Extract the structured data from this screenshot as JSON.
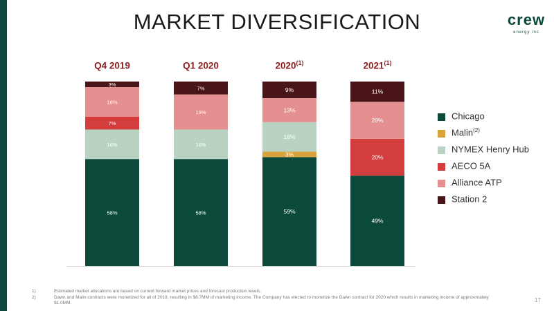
{
  "page": {
    "title": "MARKET DIVERSIFICATION",
    "page_number": "17",
    "logo_text": "crew",
    "logo_sub": "energy inc"
  },
  "columns": [
    {
      "label": "Q4 2019",
      "sup": ""
    },
    {
      "label": "Q1 2020",
      "sup": ""
    },
    {
      "label": "2020",
      "sup": "(1)"
    },
    {
      "label": "2021",
      "sup": "(1)"
    }
  ],
  "legend": [
    {
      "label": "Chicago",
      "sup": "",
      "color": "#0b4a3a"
    },
    {
      "label": "Malin",
      "sup": "(2)",
      "color": "#d9a23a"
    },
    {
      "label": "NYMEX Henry Hub",
      "sup": "",
      "color": "#b9d3c3"
    },
    {
      "label": "AECO 5A",
      "sup": "",
      "color": "#d43d3d"
    },
    {
      "label": "Alliance ATP",
      "sup": "",
      "color": "#e49090"
    },
    {
      "label": "Station 2",
      "sup": "",
      "color": "#4a1518"
    }
  ],
  "footnotes": [
    {
      "num": "1)",
      "text": "Estimated market allocations are based on current forward market prices and forecast production levels."
    },
    {
      "num": "2)",
      "text": "Dawn and Malin contracts were monetized for all of 2019, resulting in $8.7MM of marketing income. The Company has elected to monetize the Dawn contract for 2020 which results in marketing income of approximately $1.0MM."
    }
  ],
  "chart_data": {
    "type": "bar",
    "stacked": true,
    "categories": [
      "Q4 2019",
      "Q1 2020",
      "2020",
      "2021"
    ],
    "series": [
      {
        "name": "Chicago",
        "color": "#0b4a3a",
        "values": [
          58,
          58,
          59,
          49
        ],
        "labels": [
          "58%",
          "58%",
          "59%",
          "49%"
        ]
      },
      {
        "name": "Malin",
        "color": "#d9a23a",
        "values": [
          0,
          0,
          3,
          0
        ],
        "labels": [
          "",
          "",
          "3%",
          ""
        ]
      },
      {
        "name": "NYMEX Henry Hub",
        "color": "#b9d3c3",
        "values": [
          16,
          16,
          16,
          0
        ],
        "labels": [
          "16%",
          "16%",
          "16%",
          ""
        ]
      },
      {
        "name": "AECO 5A",
        "color": "#d43d3d",
        "values": [
          7,
          0,
          0,
          20
        ],
        "labels": [
          "7%",
          "",
          "",
          "20%"
        ]
      },
      {
        "name": "Alliance ATP",
        "color": "#e49090",
        "values": [
          16,
          19,
          13,
          20
        ],
        "labels": [
          "16%",
          "19%",
          "13%",
          "20%"
        ]
      },
      {
        "name": "Station 2",
        "color": "#4a1518",
        "values": [
          3,
          7,
          9,
          11
        ],
        "labels": [
          "3%",
          "7%",
          "9%",
          "11%"
        ]
      }
    ],
    "ylim": [
      0,
      100
    ]
  }
}
